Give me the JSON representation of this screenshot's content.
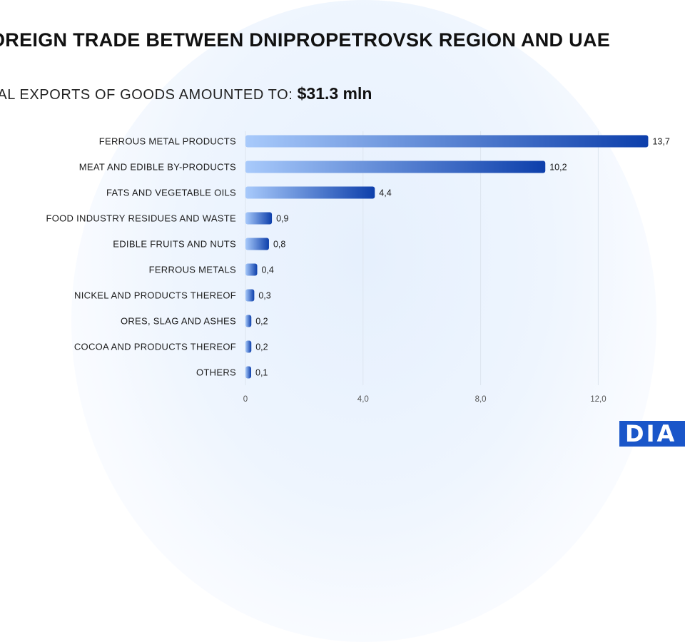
{
  "title": "OREIGN TRADE BETWEEN DNIPROPETROVSK REGION AND UAE",
  "subtitle_text": "TAL EXPORTS OF GOODS AMOUNTED TO:",
  "subtitle_amount": "$31.3 mln",
  "logo_text": "DIA",
  "colors": {
    "bar_start": "#a8cafb",
    "bar_end": "#0d3fab"
  },
  "chart_data": {
    "type": "bar",
    "orientation": "horizontal",
    "categories": [
      "FERROUS METAL PRODUCTS",
      "MEAT AND EDIBLE BY-PRODUCTS",
      "FATS AND VEGETABLE OILS",
      "FOOD INDUSTRY RESIDUES AND WASTE",
      "EDIBLE FRUITS AND NUTS",
      "FERROUS METALS",
      "NICKEL AND PRODUCTS THEREOF",
      "ORES, SLAG AND ASHES",
      "COCOA AND PRODUCTS THEREOF",
      "OTHERS"
    ],
    "values": [
      13.7,
      10.2,
      4.4,
      0.9,
      0.8,
      0.4,
      0.3,
      0.2,
      0.2,
      0.1
    ],
    "value_labels": [
      "13,7",
      "10,2",
      "4,4",
      "0,9",
      "0,8",
      "0,4",
      "0,3",
      "0,2",
      "0,2",
      "0,1"
    ],
    "x_ticks": [
      0,
      4,
      8,
      12
    ],
    "x_tick_labels": [
      "0",
      "4,0",
      "8,0",
      "12,0"
    ],
    "xlim": [
      0,
      13.7
    ],
    "grid": true
  }
}
